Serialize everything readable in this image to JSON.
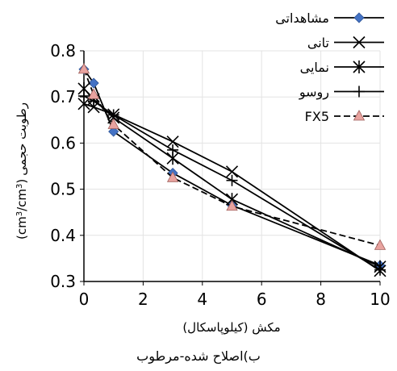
{
  "chart_data": {
    "type": "line",
    "xlabel": "مکش (کیلوپاسکال)",
    "ylabel": "رطوبت حجمی (cm3/cm3)",
    "ylabel_text": "رطوبت حجمی",
    "ylabel_unit_a": "(cm",
    "ylabel_sup_a": "3",
    "ylabel_unit_b": "/cm",
    "ylabel_sup_b": "3",
    "ylabel_unit_c": ")",
    "caption": "ب)اصلاح شده-مرطوب",
    "xlim": [
      0,
      10
    ],
    "ylim": [
      0.3,
      0.8
    ],
    "xticks": [
      0,
      2,
      4,
      6,
      8,
      10
    ],
    "yticks": [
      0.3,
      0.4,
      0.5,
      0.6,
      0.7,
      0.8
    ],
    "xtick_labels": [
      "0",
      "2",
      "4",
      "6",
      "8",
      "10"
    ],
    "ytick_labels": [
      "0.3",
      "0.4",
      "0.5",
      "0.6",
      "0.7",
      "0.8"
    ],
    "legend_position": "top-right",
    "series": [
      {
        "name": "مشاهداتی",
        "marker": "diamond",
        "color": "#4472C4",
        "dashed": false,
        "x": [
          0,
          0.33,
          1,
          3,
          5,
          10
        ],
        "y": [
          0.76,
          0.73,
          0.625,
          0.535,
          0.465,
          0.335
        ]
      },
      {
        "name": "تانی",
        "marker": "x",
        "color": "#000000",
        "dashed": false,
        "x": [
          0,
          0.33,
          1,
          3,
          5,
          10
        ],
        "y": [
          0.685,
          0.678,
          0.662,
          0.603,
          0.538,
          0.323
        ]
      },
      {
        "name": "نمایی",
        "marker": "star",
        "color": "#000000",
        "dashed": false,
        "x": [
          0,
          0.33,
          1,
          3,
          5,
          10
        ],
        "y": [
          0.718,
          0.695,
          0.655,
          0.567,
          0.478,
          0.332
        ]
      },
      {
        "name": "روسو",
        "marker": "plus",
        "color": "#000000",
        "dashed": false,
        "x": [
          0,
          0.33,
          1,
          3,
          5,
          10
        ],
        "y": [
          0.702,
          0.691,
          0.661,
          0.585,
          0.519,
          0.325
        ]
      },
      {
        "name": "FX5",
        "marker": "triangle",
        "color": "#E8A39F",
        "dashed": true,
        "x": [
          0,
          0.33,
          1,
          3,
          5,
          10
        ],
        "y": [
          0.76,
          0.705,
          0.64,
          0.525,
          0.463,
          0.378
        ]
      }
    ]
  }
}
